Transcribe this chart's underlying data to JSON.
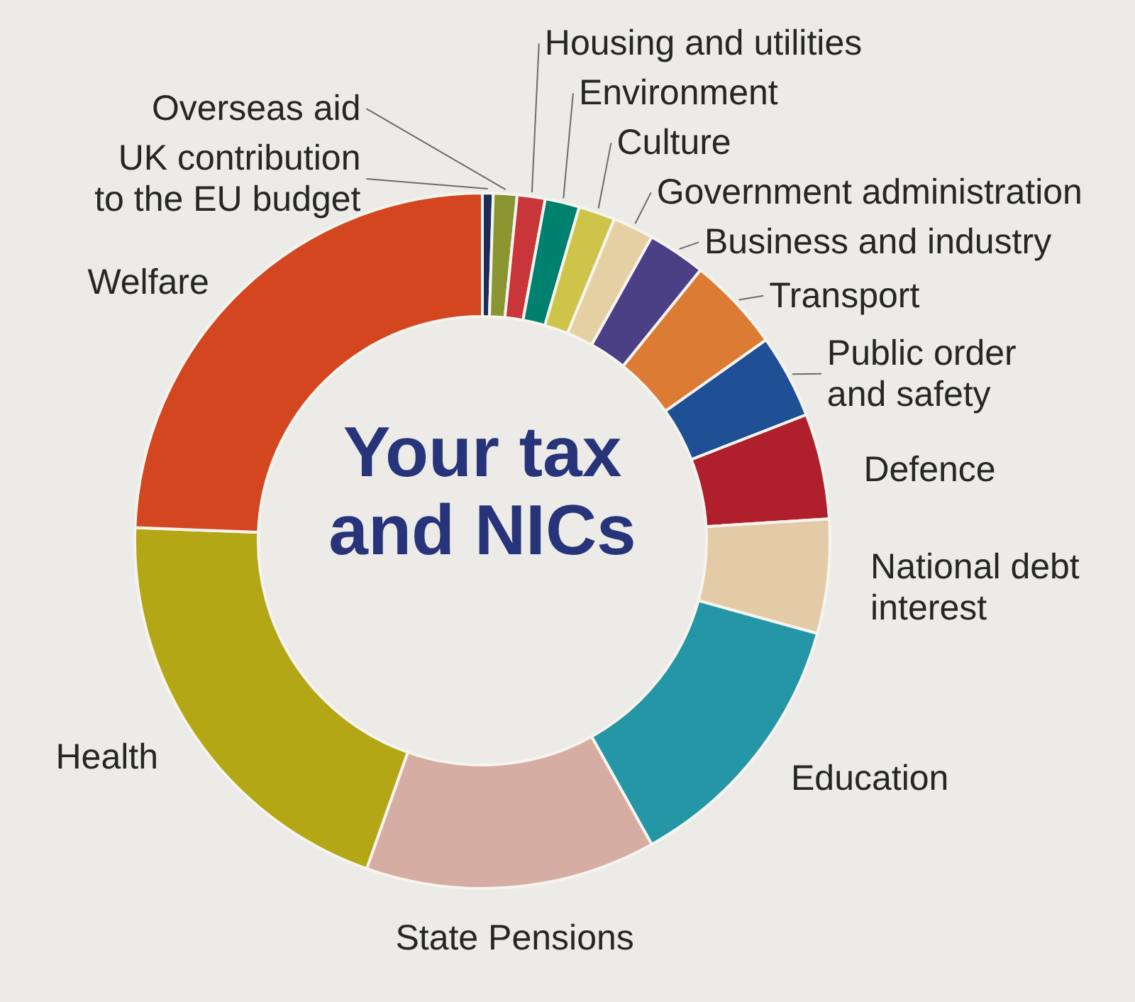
{
  "chart_data": {
    "type": "donut",
    "title": "Your tax and NICs",
    "categories": [
      "UK contribution to the EU budget",
      "Overseas aid",
      "Housing and utilities",
      "Environment",
      "Culture",
      "Government administration",
      "Business and industry",
      "Transport",
      "Public order and safety",
      "Defence",
      "National debt interest",
      "Education",
      "State Pensions",
      "Health",
      "Welfare"
    ],
    "values": [
      0.5,
      1.1,
      1.3,
      1.6,
      1.7,
      1.9,
      2.7,
      4.4,
      3.9,
      4.9,
      5.3,
      12.6,
      13.5,
      20.2,
      24.4
    ],
    "colors": [
      "#1d2c5a",
      "#889530",
      "#c9363a",
      "#00806f",
      "#cdc449",
      "#e5d0a4",
      "#4b3f85",
      "#dc7b34",
      "#1f4f94",
      "#b01f2c",
      "#e3cba8",
      "#2496a6",
      "#d6ada3",
      "#b3a716",
      "#d4461f"
    ],
    "legend": false
  }
}
